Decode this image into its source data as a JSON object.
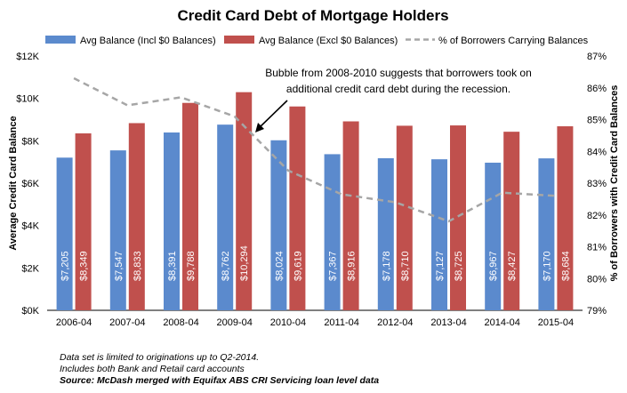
{
  "chart_data": {
    "type": "bar",
    "title": "Credit Card Debt of Mortgage Holders",
    "categories": [
      "2006-04",
      "2007-04",
      "2008-04",
      "2009-04",
      "2010-04",
      "2011-04",
      "2012-04",
      "2013-04",
      "2014-04",
      "2015-04"
    ],
    "series": [
      {
        "name": "Avg Balance (Incl $0 Balances)",
        "type": "bar",
        "color": "#5B8ACD",
        "values": [
          7205,
          7547,
          8391,
          8762,
          8024,
          7367,
          7178,
          7127,
          6967,
          7170
        ],
        "labels": [
          "$7,205",
          "$7,547",
          "$8,391",
          "$8,762",
          "$8,024",
          "$7,367",
          "$7,178",
          "$7,127",
          "$6,967",
          "$7,170"
        ]
      },
      {
        "name": "Avg Balance (Excl $0 Balances)",
        "type": "bar",
        "color": "#C0504D",
        "values": [
          8349,
          8833,
          9788,
          10294,
          9619,
          8916,
          8710,
          8725,
          8427,
          8684
        ],
        "labels": [
          "$8,349",
          "$8,833",
          "$9,788",
          "$10,294",
          "$9,619",
          "$8,916",
          "$8,710",
          "$8,725",
          "$8,427",
          "$8,684"
        ]
      },
      {
        "name": "% of Borrowers Carrying Balances",
        "type": "line",
        "axis": "right",
        "style": "dashed",
        "color": "#A6A6A6",
        "values": [
          86.3,
          85.45,
          85.7,
          85.1,
          83.4,
          82.65,
          82.4,
          81.8,
          82.7,
          82.6
        ]
      }
    ],
    "ylabel": "Average Credit Card Balance",
    "ylim": [
      0,
      12000
    ],
    "yticks": [
      "$0K",
      "$2K",
      "$4K",
      "$6K",
      "$8K",
      "$10K",
      "$12K"
    ],
    "y2label": "% of Borrowers with Credit Card Balances",
    "y2lim": [
      79,
      87
    ],
    "y2ticks": [
      "79%",
      "80%",
      "81%",
      "82%",
      "83%",
      "84%",
      "85%",
      "86%",
      "87%"
    ],
    "legend": "top",
    "grid": false,
    "annotation": {
      "lines": [
        "Bubble from 2008-2010 suggests that borrowers took on",
        "additional credit card debt during the recession."
      ],
      "points_to": "2009-04"
    }
  },
  "notes": [
    "Data set is limited to originations up to Q2-2014.",
    "Includes both Bank and Retail card accounts"
  ],
  "source": "Source: McDash merged with Equifax ABS CRI Servicing loan level data"
}
